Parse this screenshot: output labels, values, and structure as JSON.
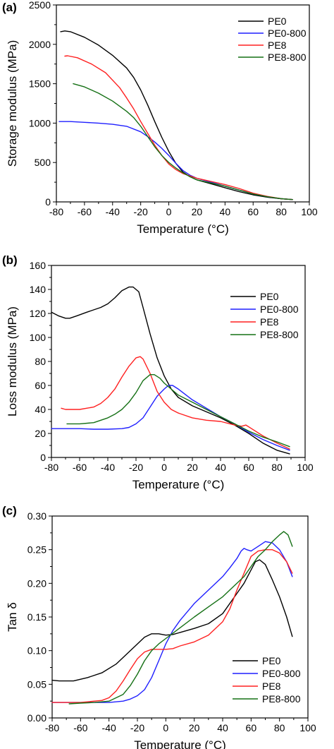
{
  "series_colors": {
    "PE0": "#000000",
    "PE0-800": "#1f1fff",
    "PE8": "#ff2020",
    "PE8-800": "#157015"
  },
  "chart_data": [
    {
      "type": "line",
      "panel_label": "(a)",
      "xlabel": "Temperature (°C)",
      "ylabel": "Storage modulus (MPa)",
      "xlim": [
        -80,
        100
      ],
      "ylim": [
        0,
        2500
      ],
      "xticks": [
        -80,
        -60,
        -40,
        -20,
        0,
        20,
        40,
        60,
        80,
        100
      ],
      "yticks": [
        0,
        500,
        1000,
        1500,
        2000,
        2500
      ],
      "legend_position": "top-right",
      "series": [
        {
          "name": "PE0",
          "x": [
            -77,
            -74,
            -70,
            -60,
            -50,
            -40,
            -30,
            -25,
            -20,
            -15,
            -10,
            -5,
            0,
            5,
            10,
            15,
            20,
            30,
            40,
            50,
            60,
            70,
            80,
            88
          ],
          "y": [
            2160,
            2170,
            2160,
            2090,
            1990,
            1860,
            1700,
            1580,
            1420,
            1230,
            1020,
            820,
            640,
            490,
            380,
            320,
            280,
            230,
            180,
            130,
            90,
            60,
            40,
            30
          ]
        },
        {
          "name": "PE0-800",
          "x": [
            -78,
            -70,
            -60,
            -50,
            -40,
            -30,
            -20,
            -15,
            -10,
            -5,
            0,
            5,
            10,
            15,
            20,
            30,
            40,
            50,
            60,
            70,
            80,
            88
          ],
          "y": [
            1020,
            1020,
            1010,
            1000,
            985,
            960,
            890,
            830,
            760,
            680,
            590,
            490,
            400,
            340,
            300,
            250,
            200,
            150,
            100,
            65,
            40,
            30
          ]
        },
        {
          "name": "PE8",
          "x": [
            -74,
            -72,
            -65,
            -55,
            -45,
            -35,
            -30,
            -25,
            -20,
            -15,
            -10,
            -5,
            0,
            5,
            10,
            15,
            20,
            30,
            40,
            50,
            60,
            70,
            80,
            88
          ],
          "y": [
            1850,
            1855,
            1830,
            1750,
            1640,
            1450,
            1320,
            1180,
            1020,
            870,
            720,
            590,
            480,
            410,
            360,
            330,
            300,
            260,
            220,
            170,
            110,
            70,
            40,
            30
          ]
        },
        {
          "name": "PE8-800",
          "x": [
            -68,
            -60,
            -50,
            -40,
            -30,
            -25,
            -20,
            -15,
            -10,
            -5,
            0,
            5,
            10,
            15,
            20,
            30,
            40,
            50,
            60,
            70,
            80,
            88
          ],
          "y": [
            1500,
            1460,
            1380,
            1280,
            1150,
            1070,
            960,
            830,
            700,
            590,
            500,
            430,
            370,
            320,
            280,
            240,
            200,
            150,
            100,
            65,
            40,
            30
          ]
        }
      ]
    },
    {
      "type": "line",
      "panel_label": "(b)",
      "xlabel": "Temperature (°C)",
      "ylabel": "Loss modulus (MPa)",
      "xlim": [
        -80,
        100
      ],
      "ylim": [
        0,
        160
      ],
      "xticks": [
        -80,
        -60,
        -40,
        -20,
        0,
        20,
        40,
        60,
        80,
        100
      ],
      "yticks": [
        0,
        20,
        40,
        60,
        80,
        100,
        120,
        140,
        160
      ],
      "legend_position": "top-right",
      "series": [
        {
          "name": "PE0",
          "x": [
            -80,
            -75,
            -70,
            -67,
            -62,
            -55,
            -45,
            -40,
            -35,
            -30,
            -25,
            -22,
            -18,
            -15,
            -10,
            -5,
            0,
            5,
            10,
            20,
            30,
            40,
            50,
            60,
            70,
            80,
            89
          ],
          "y": [
            121,
            118,
            116,
            116,
            118,
            121,
            125,
            128,
            133,
            139,
            142,
            142,
            138,
            125,
            103,
            83,
            68,
            57,
            50,
            43,
            38,
            33,
            27,
            20,
            12,
            6,
            3
          ]
        },
        {
          "name": "PE0-800",
          "x": [
            -80,
            -70,
            -60,
            -50,
            -40,
            -30,
            -25,
            -20,
            -15,
            -10,
            -5,
            0,
            3,
            6,
            10,
            20,
            30,
            40,
            50,
            60,
            70,
            80,
            89
          ],
          "y": [
            24,
            24,
            24,
            23.5,
            23.5,
            24,
            25,
            28,
            33,
            42,
            51,
            57,
            60,
            60,
            57,
            48,
            41,
            34,
            28,
            21,
            15,
            10,
            6
          ]
        },
        {
          "name": "PE8",
          "x": [
            -73,
            -70,
            -60,
            -50,
            -45,
            -40,
            -35,
            -30,
            -25,
            -20,
            -17,
            -15,
            -10,
            -5,
            0,
            5,
            10,
            20,
            30,
            40,
            50,
            55,
            58,
            62,
            70,
            80,
            89
          ],
          "y": [
            41,
            40,
            40,
            42,
            45,
            50,
            57,
            67,
            76,
            83,
            84,
            82,
            70,
            55,
            46,
            40,
            37,
            33,
            31,
            30,
            27,
            26,
            27,
            24,
            18,
            12,
            7
          ]
        },
        {
          "name": "PE8-800",
          "x": [
            -69,
            -60,
            -50,
            -40,
            -35,
            -30,
            -25,
            -20,
            -15,
            -10,
            -7,
            -3,
            0,
            5,
            10,
            20,
            30,
            40,
            50,
            60,
            70,
            80,
            89
          ],
          "y": [
            28,
            28,
            29,
            33,
            36,
            40,
            46,
            54,
            64,
            69,
            69,
            66,
            62,
            57,
            52,
            46,
            40,
            34,
            28,
            22,
            17,
            13,
            9
          ]
        }
      ]
    },
    {
      "type": "line",
      "panel_label": "(c)",
      "xlabel": "Temperature (°C)",
      "ylabel": "Tan δ",
      "xlim": [
        -80,
        100
      ],
      "ylim": [
        0.0,
        0.3
      ],
      "xticks": [
        -80,
        -60,
        -40,
        -20,
        0,
        20,
        40,
        60,
        80,
        100
      ],
      "yticks": [
        0.0,
        0.05,
        0.1,
        0.15,
        0.2,
        0.25,
        0.3
      ],
      "ytick_labels": [
        "0.00",
        "0.05",
        "0.10",
        "0.15",
        "0.20",
        "0.25",
        "0.30"
      ],
      "legend_position": "bottom-right",
      "series": [
        {
          "name": "PE0",
          "x": [
            -80,
            -75,
            -65,
            -55,
            -45,
            -35,
            -25,
            -15,
            -10,
            -5,
            0,
            5,
            10,
            20,
            30,
            40,
            50,
            55,
            60,
            63,
            66,
            70,
            75,
            80,
            85,
            89
          ],
          "y": [
            0.056,
            0.055,
            0.055,
            0.06,
            0.067,
            0.08,
            0.1,
            0.12,
            0.125,
            0.125,
            0.123,
            0.124,
            0.127,
            0.133,
            0.14,
            0.155,
            0.185,
            0.2,
            0.22,
            0.232,
            0.235,
            0.228,
            0.205,
            0.18,
            0.15,
            0.121
          ]
        },
        {
          "name": "PE0-800",
          "x": [
            -80,
            -60,
            -40,
            -30,
            -25,
            -20,
            -15,
            -10,
            -5,
            0,
            5,
            10,
            20,
            30,
            40,
            45,
            50,
            53,
            55,
            57,
            60,
            65,
            70,
            75,
            80,
            85,
            89
          ],
          "y": [
            0.023,
            0.023,
            0.023,
            0.025,
            0.028,
            0.033,
            0.042,
            0.06,
            0.085,
            0.11,
            0.13,
            0.145,
            0.17,
            0.19,
            0.21,
            0.223,
            0.237,
            0.248,
            0.252,
            0.25,
            0.248,
            0.255,
            0.262,
            0.26,
            0.25,
            0.232,
            0.21
          ]
        },
        {
          "name": "PE8",
          "x": [
            -80,
            -60,
            -45,
            -40,
            -35,
            -30,
            -25,
            -20,
            -15,
            -10,
            -5,
            0,
            5,
            10,
            20,
            30,
            40,
            45,
            50,
            55,
            60,
            65,
            70,
            75,
            80,
            85,
            89
          ],
          "y": [
            0.023,
            0.023,
            0.026,
            0.03,
            0.04,
            0.055,
            0.072,
            0.088,
            0.098,
            0.102,
            0.102,
            0.102,
            0.103,
            0.107,
            0.113,
            0.123,
            0.143,
            0.162,
            0.19,
            0.215,
            0.24,
            0.248,
            0.25,
            0.25,
            0.245,
            0.232,
            0.215
          ]
        },
        {
          "name": "PE8-800",
          "x": [
            -68,
            -60,
            -50,
            -40,
            -30,
            -25,
            -20,
            -15,
            -10,
            -5,
            0,
            5,
            10,
            20,
            30,
            40,
            50,
            55,
            60,
            65,
            70,
            75,
            80,
            83,
            86,
            89
          ],
          "y": [
            0.021,
            0.022,
            0.023,
            0.025,
            0.035,
            0.048,
            0.065,
            0.085,
            0.1,
            0.11,
            0.118,
            0.126,
            0.134,
            0.15,
            0.165,
            0.18,
            0.2,
            0.21,
            0.225,
            0.24,
            0.25,
            0.262,
            0.272,
            0.277,
            0.272,
            0.255
          ]
        }
      ]
    }
  ]
}
